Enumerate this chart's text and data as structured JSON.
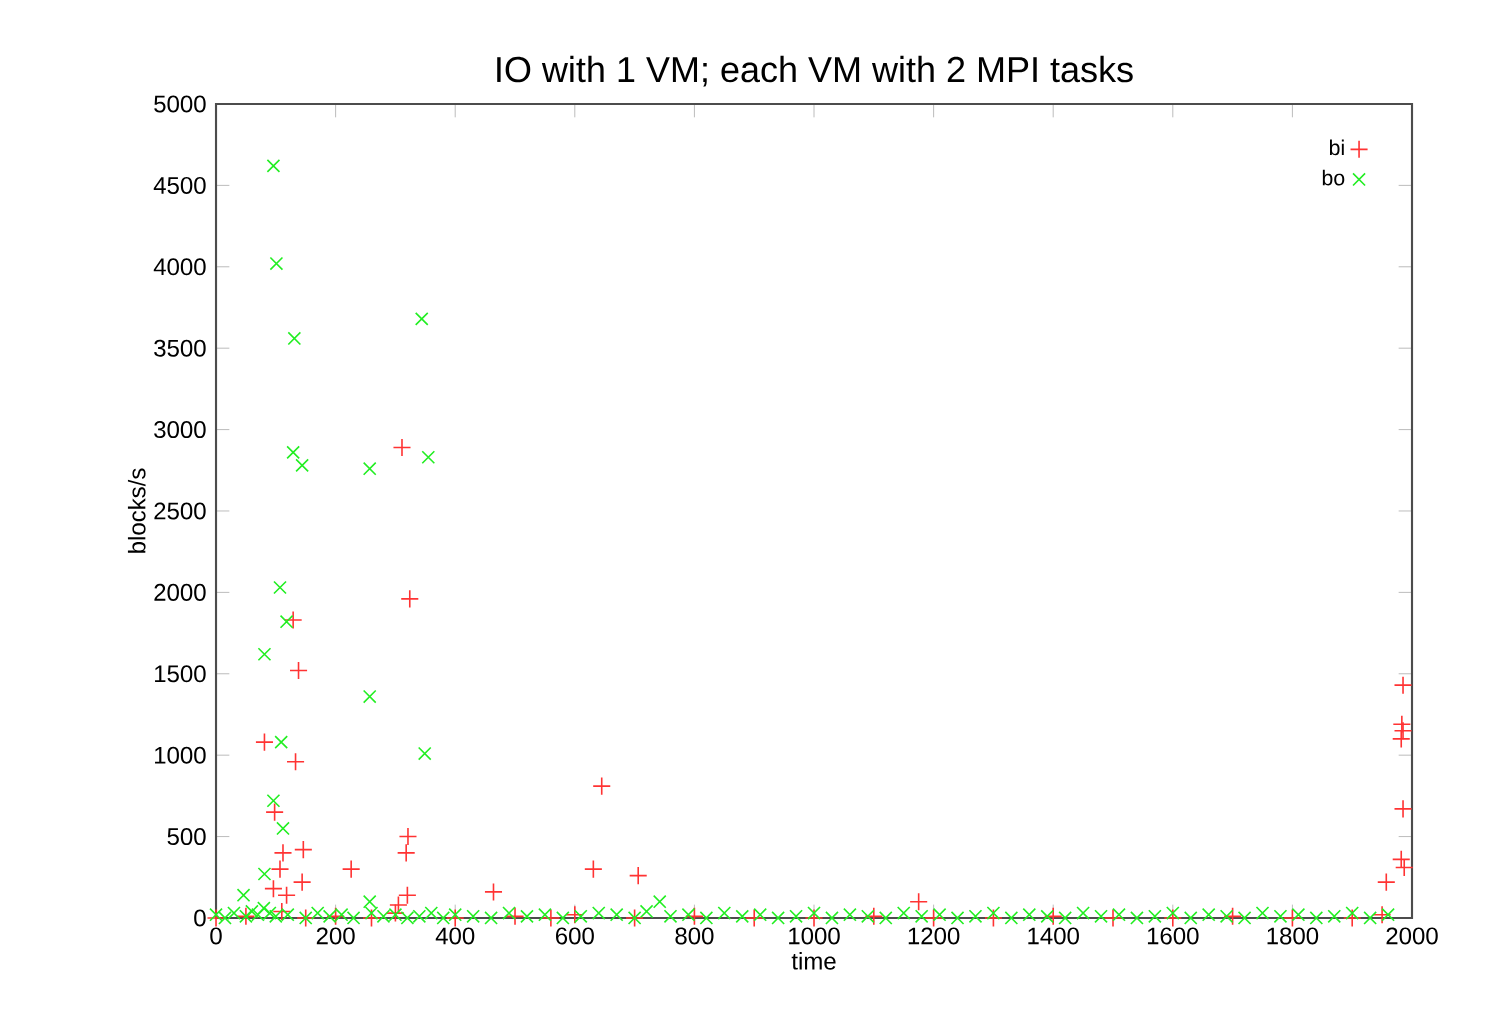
{
  "chart_data": {
    "type": "scatter",
    "title": "IO with 1 VM; each VM with 2 MPI tasks",
    "xlabel": "time",
    "ylabel": "blocks/s",
    "xlim": [
      0,
      2000
    ],
    "ylim": [
      0,
      5000
    ],
    "xticks": [
      0,
      200,
      400,
      600,
      800,
      1000,
      1200,
      1400,
      1600,
      1800,
      2000
    ],
    "yticks": [
      0,
      500,
      1000,
      1500,
      2000,
      2500,
      3000,
      3500,
      4000,
      4500,
      5000
    ],
    "grid": false,
    "legend": "top right",
    "series": [
      {
        "name": "bi",
        "color": "#ff3333",
        "marker": "cross",
        "x": [
          311,
          324,
          129,
          138,
          81,
          133,
          645,
          98,
          321,
          318,
          146,
          112,
          226,
          631,
          706,
          144,
          464,
          107,
          96,
          118,
          320,
          305,
          1175,
          1985,
          1983,
          1985,
          1982,
          1985,
          1982,
          1987,
          1957,
          0,
          50,
          90,
          100,
          110,
          150,
          200,
          260,
          300,
          400,
          500,
          560,
          600,
          700,
          800,
          900,
          1000,
          1100,
          1200,
          1300,
          1400,
          1500,
          1600,
          1700,
          1800,
          1900,
          1950
        ],
        "values": [
          2890,
          1960,
          1830,
          1520,
          1080,
          960,
          810,
          650,
          500,
          400,
          420,
          400,
          300,
          300,
          260,
          220,
          160,
          300,
          180,
          140,
          140,
          80,
          100,
          1430,
          1190,
          1150,
          1100,
          670,
          360,
          310,
          220,
          0,
          10,
          null,
          null,
          40,
          0,
          10,
          0,
          30,
          0,
          10,
          0,
          20,
          0,
          10,
          0,
          0,
          10,
          0,
          0,
          10,
          0,
          0,
          10,
          0,
          0,
          20
        ]
      },
      {
        "name": "bo",
        "color": "#22ee22",
        "marker": "cross",
        "x": [
          96,
          101,
          131,
          344,
          129,
          144,
          257,
          355,
          107,
          118,
          81,
          257,
          109,
          349,
          96,
          112,
          81,
          46,
          257,
          742,
          0,
          15,
          30,
          50,
          60,
          70,
          80,
          90,
          100,
          120,
          150,
          170,
          190,
          210,
          230,
          260,
          280,
          300,
          320,
          340,
          360,
          380,
          400,
          430,
          460,
          490,
          520,
          550,
          580,
          610,
          640,
          670,
          700,
          720,
          760,
          790,
          820,
          850,
          880,
          910,
          940,
          970,
          1000,
          1030,
          1060,
          1090,
          1120,
          1150,
          1180,
          1210,
          1240,
          1270,
          1300,
          1330,
          1360,
          1390,
          1420,
          1450,
          1480,
          1510,
          1540,
          1570,
          1600,
          1630,
          1660,
          1690,
          1720,
          1750,
          1780,
          1810,
          1840,
          1870,
          1900,
          1930,
          1960
        ],
        "values": [
          4620,
          4020,
          3560,
          3680,
          2860,
          2780,
          2760,
          2830,
          2030,
          1820,
          1620,
          1360,
          1080,
          1010,
          720,
          550,
          270,
          140,
          100,
          100,
          20,
          0,
          30,
          10,
          40,
          20,
          60,
          30,
          10,
          20,
          0,
          30,
          10,
          20,
          0,
          30,
          10,
          20,
          0,
          10,
          30,
          0,
          20,
          10,
          0,
          30,
          10,
          20,
          0,
          10,
          30,
          20,
          0,
          40,
          10,
          20,
          0,
          30,
          10,
          20,
          0,
          10,
          30,
          0,
          20,
          10,
          0,
          30,
          10,
          20,
          0,
          10,
          30,
          0,
          20,
          10,
          0,
          30,
          10,
          20,
          0,
          10,
          30,
          0,
          20,
          10,
          0,
          30,
          10,
          20,
          0,
          10,
          30,
          0,
          20
        ]
      }
    ]
  }
}
